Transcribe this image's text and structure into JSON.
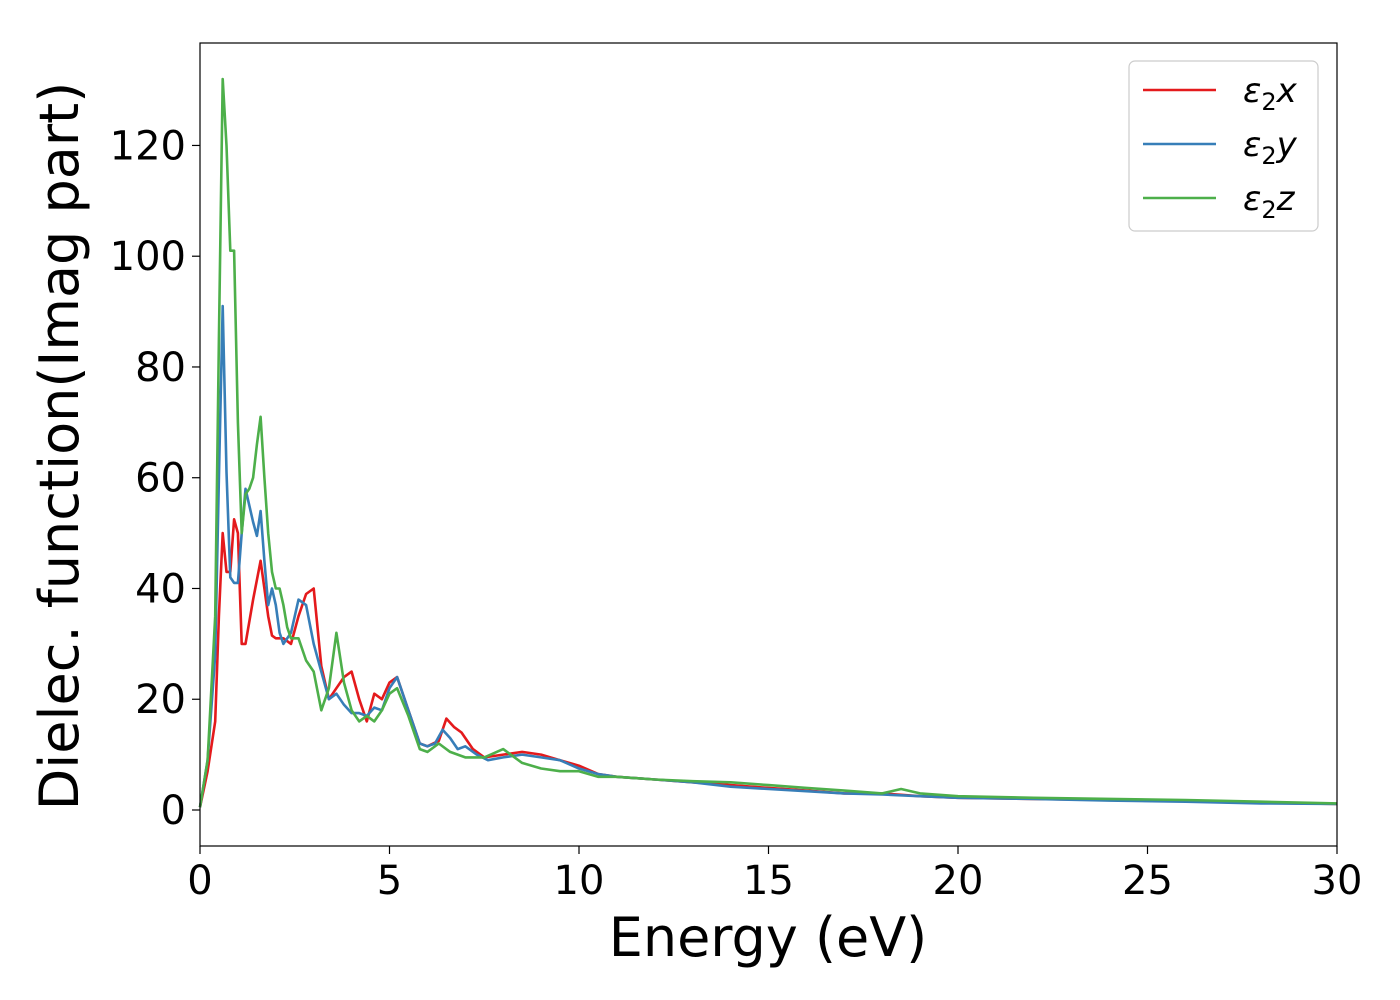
{
  "chart_data": {
    "type": "line",
    "title": "",
    "xlabel": "Energy (eV)",
    "ylabel": "Dielec. function(Imag part)",
    "xlim": [
      0,
      30
    ],
    "ylim": [
      -6.5,
      138.5
    ],
    "xticks": [
      0,
      5,
      10,
      15,
      20,
      25,
      30
    ],
    "yticks": [
      0,
      20,
      40,
      60,
      80,
      100,
      120
    ],
    "grid": false,
    "legend_position": "top-right",
    "series": [
      {
        "name": "ε₂x",
        "legend_base": "ε",
        "legend_sub": "2",
        "legend_suffix": "x",
        "color": "#e41a1c",
        "x": [
          0,
          0.2,
          0.4,
          0.5,
          0.6,
          0.7,
          0.8,
          0.9,
          1.0,
          1.1,
          1.2,
          1.4,
          1.6,
          1.8,
          1.9,
          2.0,
          2.2,
          2.4,
          2.6,
          2.8,
          3.0,
          3.2,
          3.4,
          3.6,
          3.8,
          4.0,
          4.2,
          4.4,
          4.6,
          4.8,
          5.0,
          5.2,
          5.5,
          5.8,
          6.0,
          6.3,
          6.5,
          6.7,
          6.9,
          7.2,
          7.5,
          8.0,
          8.5,
          9.0,
          9.5,
          10.0,
          10.5,
          11,
          12,
          13,
          14,
          15,
          16,
          17,
          18,
          19,
          20,
          22,
          24,
          26,
          28,
          30
        ],
        "y": [
          0.5,
          7,
          16,
          35,
          50,
          43,
          43,
          52.5,
          50,
          30,
          30,
          38,
          45,
          35,
          31.5,
          31,
          31,
          30,
          35,
          39,
          40,
          26,
          20,
          22,
          24,
          25,
          20,
          16,
          21,
          20,
          23,
          24,
          18,
          12,
          11.5,
          12.5,
          16.5,
          15,
          14,
          11,
          9.5,
          10,
          10.5,
          10,
          9,
          8,
          6.5,
          6,
          5.5,
          5,
          4.5,
          4,
          3.5,
          3,
          3,
          2.5,
          2.2,
          2,
          1.8,
          1.6,
          1.3,
          1.1
        ]
      },
      {
        "name": "ε₂y",
        "legend_base": "ε",
        "legend_sub": "2",
        "legend_suffix": "y",
        "color": "#377eb8",
        "x": [
          0,
          0.2,
          0.4,
          0.5,
          0.6,
          0.7,
          0.8,
          0.9,
          1.0,
          1.1,
          1.2,
          1.3,
          1.4,
          1.5,
          1.6,
          1.7,
          1.8,
          1.9,
          2.0,
          2.1,
          2.2,
          2.4,
          2.6,
          2.8,
          3.0,
          3.2,
          3.4,
          3.6,
          3.8,
          4.0,
          4.2,
          4.4,
          4.6,
          4.8,
          5.0,
          5.2,
          5.5,
          5.8,
          6.0,
          6.2,
          6.4,
          6.6,
          6.8,
          7.0,
          7.3,
          7.6,
          8.0,
          8.5,
          9.0,
          9.5,
          10.0,
          10.5,
          11,
          12,
          13,
          14,
          15,
          16,
          17,
          18,
          19,
          20,
          22,
          24,
          26,
          28,
          30
        ],
        "y": [
          0.5,
          9,
          28,
          60,
          91,
          61,
          42,
          41,
          41,
          50,
          58,
          55,
          52,
          49.5,
          54,
          45,
          37,
          40,
          37,
          32,
          30,
          32,
          38,
          37,
          30,
          25,
          20,
          21,
          19,
          17.5,
          17.5,
          17,
          18.5,
          18,
          22,
          24,
          18,
          12,
          11.5,
          12,
          14.5,
          13,
          11,
          11.5,
          10,
          9,
          9.5,
          10,
          9.5,
          9,
          7.5,
          6.5,
          6,
          5.5,
          5,
          4.2,
          3.8,
          3.4,
          3,
          2.8,
          2.5,
          2.2,
          2,
          1.7,
          1.5,
          1.2,
          1.1
        ]
      },
      {
        "name": "ε₂z",
        "legend_base": "ε",
        "legend_sub": "2",
        "legend_suffix": "z",
        "color": "#4daf4a",
        "x": [
          0,
          0.2,
          0.4,
          0.5,
          0.6,
          0.7,
          0.8,
          0.9,
          1.0,
          1.1,
          1.2,
          1.3,
          1.4,
          1.5,
          1.6,
          1.7,
          1.8,
          1.9,
          2.0,
          2.1,
          2.2,
          2.3,
          2.4,
          2.6,
          2.8,
          3.0,
          3.2,
          3.4,
          3.6,
          3.8,
          4.0,
          4.2,
          4.4,
          4.6,
          4.8,
          5.0,
          5.2,
          5.5,
          5.8,
          6.0,
          6.3,
          6.6,
          7.0,
          7.5,
          8.0,
          8.5,
          9.0,
          9.5,
          10.0,
          10.5,
          11,
          12,
          13,
          14,
          15,
          16,
          17,
          18,
          18.5,
          19,
          20,
          22,
          24,
          26,
          28,
          30
        ],
        "y": [
          0.5,
          9,
          35,
          85,
          132,
          120,
          101,
          101,
          70,
          50,
          57,
          58,
          60,
          66,
          71,
          60,
          50,
          43,
          40,
          40,
          37,
          33,
          31,
          31,
          27,
          25,
          18,
          22,
          32,
          23,
          18,
          16,
          17,
          16,
          18,
          21,
          22,
          17,
          11,
          10.5,
          12,
          10.5,
          9.5,
          9.5,
          11,
          8.5,
          7.5,
          7,
          7,
          6,
          6,
          5.5,
          5.2,
          5,
          4.5,
          4,
          3.5,
          3,
          3.8,
          3,
          2.5,
          2.2,
          2,
          1.8,
          1.5,
          1.2
        ]
      }
    ]
  }
}
